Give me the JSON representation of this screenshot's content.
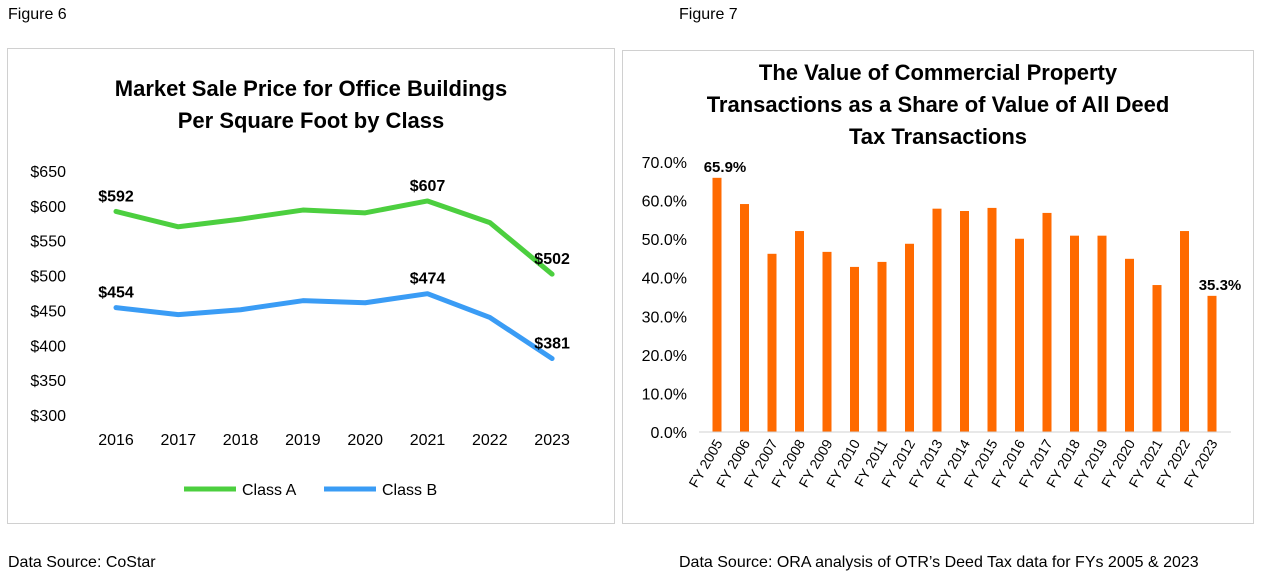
{
  "figure_labels": {
    "left": "Figure 6",
    "right": "Figure 7"
  },
  "sources": {
    "left": "Data Source: CoStar",
    "right": "Data Source: ORA analysis of OTR’s Deed Tax data for FYs 2005 & 2023"
  },
  "chart_data": [
    {
      "type": "line",
      "title_lines": [
        "Market Sale Price for Office Buildings",
        "Per Square Foot by Class"
      ],
      "x": [
        "2016",
        "2017",
        "2018",
        "2019",
        "2020",
        "2021",
        "2022",
        "2023"
      ],
      "series": [
        {
          "name": "Class A",
          "color": "#4ccf3f",
          "values": [
            592,
            570,
            581,
            594,
            590,
            607,
            576,
            502
          ],
          "labels": {
            "0": "$592",
            "5": "$607",
            "7": "$502"
          }
        },
        {
          "name": "Class B",
          "color": "#3a9cf5",
          "values": [
            454,
            444,
            451,
            464,
            461,
            474,
            440,
            381
          ],
          "labels": {
            "0": "$454",
            "5": "$474",
            "7": "$381"
          }
        }
      ],
      "ylim": [
        300,
        650
      ],
      "yticks": [
        300,
        350,
        400,
        450,
        500,
        550,
        600,
        650
      ],
      "ytick_labels": [
        "$300",
        "$350",
        "$400",
        "$450",
        "$500",
        "$550",
        "$600",
        "$650"
      ],
      "grid": false,
      "legend": "bottom"
    },
    {
      "type": "bar",
      "title_lines": [
        "The Value of Commercial Property",
        "Transactions as a Share of Value of All Deed",
        "Tax Transactions"
      ],
      "categories": [
        "FY 2005",
        "FY 2006",
        "FY 2007",
        "FY 2008",
        "FY 2009",
        "FY 2010",
        "FY 2011",
        "FY 2012",
        "FY 2013",
        "FY 2014",
        "FY 2015",
        "FY 2016",
        "FY 2017",
        "FY 2018",
        "FY 2019",
        "FY 2020",
        "FY 2021",
        "FY 2022",
        "FY 2023"
      ],
      "values": [
        65.9,
        59.1,
        46.2,
        52.1,
        46.7,
        42.8,
        44.1,
        48.8,
        57.9,
        57.3,
        58.1,
        50.1,
        56.8,
        50.9,
        50.9,
        44.9,
        38.1,
        52.1,
        35.3
      ],
      "color": "#ff6a00",
      "data_labels": {
        "0": "65.9%",
        "18": "35.3%"
      },
      "ylim": [
        0,
        70
      ],
      "yticks": [
        0,
        10,
        20,
        30,
        40,
        50,
        60,
        70
      ],
      "ytick_labels": [
        "0.0%",
        "10.0%",
        "20.0%",
        "30.0%",
        "40.0%",
        "50.0%",
        "60.0%",
        "70.0%"
      ],
      "grid": false,
      "legend": "none"
    }
  ]
}
